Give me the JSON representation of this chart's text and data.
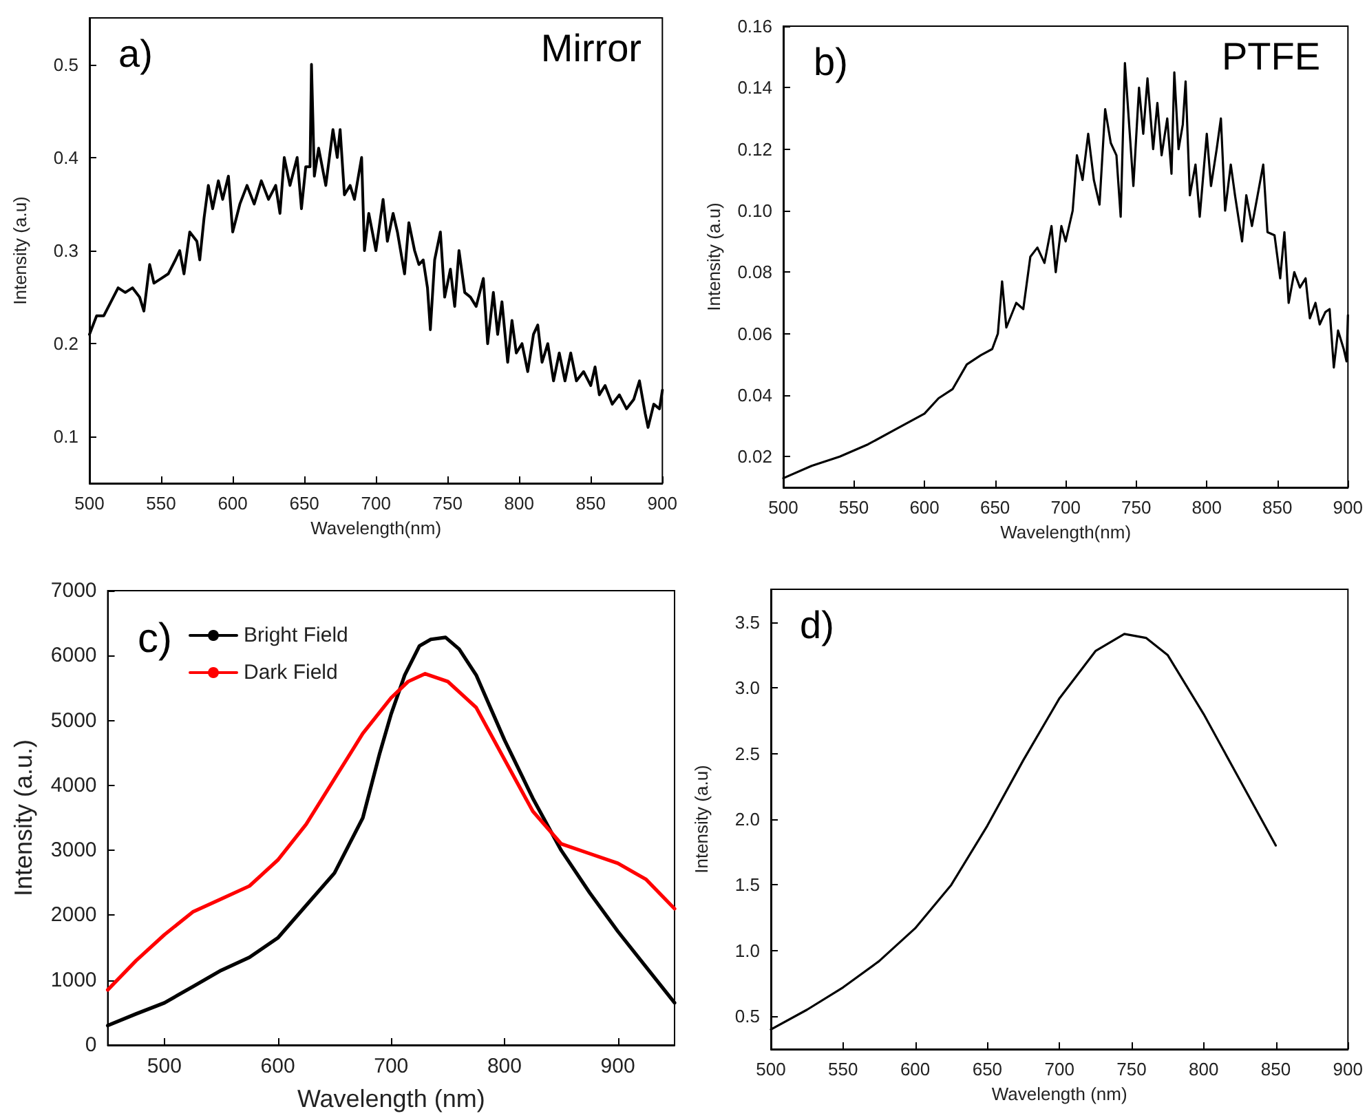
{
  "chart_data": [
    {
      "type": "line",
      "xlabel": "Wavelength(nm)",
      "ylabel": "Intensity (a.u)",
      "annotations": [
        "a)",
        "Mirror"
      ],
      "xlim": [
        500,
        900
      ],
      "xticks": [
        500,
        550,
        600,
        650,
        700,
        750,
        800,
        850,
        900
      ],
      "ylim": [
        0.05,
        0.55
      ],
      "yticks": [
        0.1,
        0.2,
        0.3,
        0.4,
        0.5
      ],
      "series": [
        {
          "color": "#000000",
          "x": [
            500,
            505,
            510,
            515,
            520,
            525,
            530,
            535,
            538,
            542,
            545,
            550,
            555,
            560,
            563,
            566,
            570,
            575,
            577,
            580,
            583,
            586,
            590,
            593,
            597,
            600,
            605,
            610,
            615,
            620,
            625,
            630,
            633,
            636,
            640,
            645,
            648,
            651,
            654,
            655,
            657,
            660,
            665,
            670,
            673,
            675,
            678,
            682,
            685,
            690,
            692,
            695,
            700,
            705,
            708,
            712,
            715,
            720,
            723,
            727,
            730,
            733,
            736,
            738,
            741,
            745,
            748,
            752,
            755,
            758,
            762,
            766,
            770,
            775,
            778,
            782,
            785,
            788,
            792,
            795,
            798,
            802,
            806,
            810,
            813,
            816,
            820,
            824,
            828,
            832,
            836,
            840,
            845,
            850,
            853,
            856,
            860,
            865,
            870,
            875,
            880,
            884,
            888,
            890,
            894,
            898,
            900
          ],
          "values": [
            0.21,
            0.23,
            0.23,
            0.245,
            0.26,
            0.255,
            0.26,
            0.25,
            0.235,
            0.285,
            0.265,
            0.27,
            0.275,
            0.29,
            0.3,
            0.275,
            0.32,
            0.31,
            0.29,
            0.335,
            0.37,
            0.345,
            0.375,
            0.355,
            0.38,
            0.32,
            0.35,
            0.37,
            0.35,
            0.375,
            0.355,
            0.37,
            0.34,
            0.4,
            0.37,
            0.4,
            0.345,
            0.39,
            0.39,
            0.5,
            0.38,
            0.41,
            0.37,
            0.43,
            0.4,
            0.43,
            0.36,
            0.37,
            0.355,
            0.4,
            0.3,
            0.34,
            0.3,
            0.355,
            0.31,
            0.34,
            0.32,
            0.275,
            0.33,
            0.3,
            0.285,
            0.29,
            0.26,
            0.215,
            0.29,
            0.32,
            0.25,
            0.28,
            0.24,
            0.3,
            0.255,
            0.25,
            0.24,
            0.27,
            0.2,
            0.255,
            0.21,
            0.245,
            0.18,
            0.225,
            0.19,
            0.2,
            0.17,
            0.21,
            0.22,
            0.18,
            0.2,
            0.16,
            0.19,
            0.16,
            0.19,
            0.16,
            0.17,
            0.155,
            0.175,
            0.145,
            0.155,
            0.135,
            0.145,
            0.13,
            0.14,
            0.16,
            0.125,
            0.11,
            0.135,
            0.13,
            0.15
          ]
        }
      ]
    },
    {
      "type": "line",
      "xlabel": "Wavelength(nm)",
      "ylabel": "Intensity (a.u)",
      "annotations": [
        "b)",
        "PTFE"
      ],
      "xlim": [
        500,
        900
      ],
      "xticks": [
        500,
        550,
        600,
        650,
        700,
        750,
        800,
        850,
        900
      ],
      "ylim": [
        0.01,
        0.16
      ],
      "yticks": [
        0.02,
        0.04,
        0.06,
        0.08,
        {
          "value": 0.1,
          "label": "0.10"
        },
        0.12,
        0.14,
        0.16
      ],
      "series": [
        {
          "color": "#000000",
          "x": [
            500,
            520,
            540,
            560,
            580,
            600,
            610,
            620,
            630,
            640,
            648,
            652,
            655,
            658,
            665,
            670,
            675,
            680,
            685,
            690,
            693,
            697,
            700,
            705,
            708,
            712,
            716,
            720,
            724,
            728,
            732,
            736,
            739,
            742,
            745,
            748,
            752,
            755,
            758,
            762,
            765,
            768,
            772,
            775,
            777,
            780,
            783,
            785,
            788,
            792,
            795,
            800,
            803,
            807,
            810,
            813,
            817,
            820,
            825,
            828,
            832,
            836,
            840,
            843,
            848,
            852,
            855,
            858,
            862,
            866,
            870,
            873,
            877,
            880,
            884,
            887,
            890,
            893,
            897,
            899,
            900
          ],
          "values": [
            0.013,
            0.017,
            0.02,
            0.024,
            0.029,
            0.034,
            0.039,
            0.042,
            0.05,
            0.053,
            0.055,
            0.06,
            0.077,
            0.062,
            0.07,
            0.068,
            0.085,
            0.088,
            0.083,
            0.095,
            0.08,
            0.095,
            0.09,
            0.1,
            0.118,
            0.11,
            0.125,
            0.11,
            0.102,
            0.133,
            0.122,
            0.118,
            0.098,
            0.148,
            0.128,
            0.108,
            0.14,
            0.125,
            0.143,
            0.12,
            0.135,
            0.118,
            0.13,
            0.112,
            0.145,
            0.12,
            0.128,
            0.142,
            0.105,
            0.115,
            0.098,
            0.125,
            0.108,
            0.12,
            0.13,
            0.1,
            0.115,
            0.105,
            0.09,
            0.105,
            0.095,
            0.105,
            0.115,
            0.093,
            0.092,
            0.078,
            0.093,
            0.07,
            0.08,
            0.075,
            0.078,
            0.065,
            0.07,
            0.063,
            0.067,
            0.068,
            0.049,
            0.061,
            0.055,
            0.051,
            0.066
          ]
        }
      ]
    },
    {
      "type": "line",
      "xlabel": "Wavelength (nm)",
      "ylabel": "Intensity (a.u.)",
      "annotations": [
        "c)"
      ],
      "legend": "top left",
      "xlim": [
        450,
        950
      ],
      "xticks": [
        500,
        600,
        700,
        800,
        900
      ],
      "ylim": [
        0,
        7000
      ],
      "yticks": [
        0,
        1000,
        2000,
        3000,
        4000,
        5000,
        6000,
        7000
      ],
      "series": [
        {
          "name": "Bright Field",
          "color": "#000000",
          "x": [
            450,
            475,
            500,
            525,
            550,
            575,
            600,
            625,
            650,
            675,
            690,
            700,
            712,
            725,
            735,
            748,
            760,
            775,
            790,
            800,
            825,
            850,
            875,
            900,
            925,
            950
          ],
          "values": [
            300,
            480,
            650,
            900,
            1150,
            1350,
            1650,
            2150,
            2650,
            3500,
            4500,
            5100,
            5700,
            6150,
            6250,
            6280,
            6100,
            5700,
            5100,
            4700,
            3800,
            3000,
            2350,
            1750,
            1200,
            650
          ]
        },
        {
          "name": "Dark Field",
          "color": "#ff0000",
          "x": [
            450,
            475,
            500,
            525,
            550,
            575,
            600,
            625,
            650,
            675,
            700,
            715,
            730,
            750,
            775,
            800,
            825,
            850,
            875,
            900,
            925,
            950
          ],
          "values": [
            850,
            1300,
            1700,
            2050,
            2250,
            2450,
            2850,
            3400,
            4100,
            4800,
            5350,
            5600,
            5720,
            5600,
            5200,
            4400,
            3600,
            3100,
            2950,
            2800,
            2550,
            2100
          ]
        }
      ]
    },
    {
      "type": "line",
      "xlabel": "Wavelength (nm)",
      "ylabel": "Intensity (a.u)",
      "annotations": [
        "d)"
      ],
      "xlim": [
        500,
        900
      ],
      "xticks": [
        500,
        550,
        600,
        650,
        700,
        750,
        800,
        850,
        900
      ],
      "ylim": [
        0.25,
        3.75
      ],
      "yticks": [
        0.5,
        {
          "value": 1,
          "label": "1.0"
        },
        1.5,
        {
          "value": 2,
          "label": "2.0"
        },
        2.5,
        {
          "value": 3,
          "label": "3.0"
        },
        3.5
      ],
      "series": [
        {
          "color": "#000000",
          "x": [
            500,
            525,
            550,
            575,
            600,
            625,
            650,
            675,
            700,
            725,
            745,
            760,
            775,
            800,
            825,
            850
          ],
          "values": [
            0.4,
            0.55,
            0.72,
            0.92,
            1.17,
            1.5,
            1.95,
            2.45,
            2.92,
            3.28,
            3.41,
            3.38,
            3.25,
            2.8,
            2.3,
            1.8
          ]
        }
      ]
    }
  ]
}
